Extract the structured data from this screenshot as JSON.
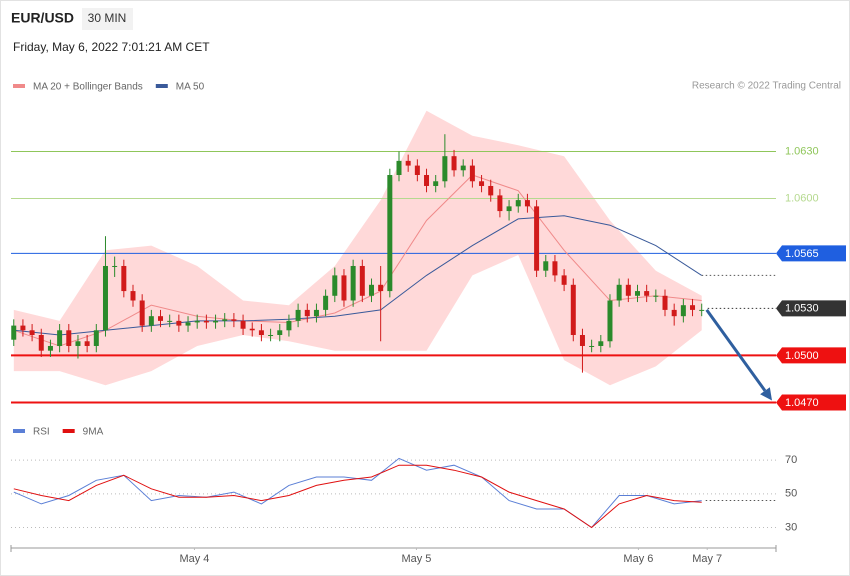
{
  "header": {
    "symbol": "EUR/USD",
    "timeframe": "30 MIN",
    "timestamp": "Friday, May 6, 2022 7:01:21 AM CET",
    "credit": "Research © 2022 Trading Central"
  },
  "chart_data": [
    {
      "type": "candlestick",
      "x": [
        0,
        1,
        2,
        3,
        4,
        5,
        6,
        7,
        8,
        9,
        10,
        11,
        12,
        13,
        14,
        15,
        16,
        17,
        18,
        19,
        20,
        21,
        22,
        23,
        24,
        25,
        26,
        27,
        28,
        29,
        30,
        31,
        32,
        33,
        34,
        35,
        36,
        37,
        38,
        39,
        40,
        41,
        42,
        43,
        44,
        45,
        46,
        47,
        48,
        49,
        50,
        51,
        52,
        53,
        54,
        55,
        56,
        57,
        58,
        59,
        60,
        61,
        62,
        63,
        64,
        65,
        66,
        67,
        68,
        69,
        70,
        71,
        72,
        73,
        74,
        75
      ],
      "open": [
        1.051,
        1.0519,
        1.0516,
        1.0513,
        1.0503,
        1.0506,
        1.0516,
        1.0506,
        1.0509,
        1.0506,
        1.0516,
        1.0557,
        1.0557,
        1.0541,
        1.0535,
        1.0519,
        1.0525,
        1.0522,
        1.0522,
        1.0519,
        1.0521,
        1.0522,
        1.0521,
        1.0522,
        1.0523,
        1.0522,
        1.0517,
        1.0516,
        1.0513,
        1.0513,
        1.0516,
        1.0522,
        1.0529,
        1.0525,
        1.0529,
        1.0538,
        1.0551,
        1.0535,
        1.0557,
        1.0538,
        1.0545,
        1.0541,
        1.0615,
        1.0624,
        1.0621,
        1.0615,
        1.0608,
        1.0611,
        1.0627,
        1.0618,
        1.0621,
        1.0611,
        1.0608,
        1.0602,
        1.0592,
        1.0595,
        1.0599,
        1.0595,
        1.0554,
        1.056,
        1.0551,
        1.0545,
        1.0513,
        1.0506,
        1.0506,
        1.0509,
        1.0535,
        1.0545,
        1.0538,
        1.0541,
        1.0538,
        1.0538,
        1.0529,
        1.0525,
        1.0532,
        1.0529
      ],
      "high": [
        1.0523,
        1.0523,
        1.052,
        1.0517,
        1.051,
        1.052,
        1.052,
        1.0513,
        1.0513,
        1.052,
        1.0576,
        1.0563,
        1.0561,
        1.0545,
        1.0539,
        1.0529,
        1.0529,
        1.0526,
        1.0526,
        1.0525,
        1.0526,
        1.0526,
        1.0526,
        1.0527,
        1.0527,
        1.0526,
        1.0521,
        1.052,
        1.0517,
        1.052,
        1.0526,
        1.0533,
        1.0533,
        1.0533,
        1.0542,
        1.0556,
        1.0555,
        1.0561,
        1.0561,
        1.0549,
        1.0557,
        1.0619,
        1.063,
        1.0628,
        1.0625,
        1.0619,
        1.0615,
        1.0641,
        1.0631,
        1.0625,
        1.0625,
        1.0615,
        1.0612,
        1.0606,
        1.0599,
        1.0603,
        1.0603,
        1.0599,
        1.0564,
        1.0564,
        1.0555,
        1.0549,
        1.0517,
        1.051,
        1.0513,
        1.0539,
        1.0549,
        1.0549,
        1.0545,
        1.0545,
        1.0542,
        1.0542,
        1.0533,
        1.0536,
        1.0536,
        1.0533
      ],
      "low": [
        1.0506,
        1.0512,
        1.0509,
        1.0499,
        1.0499,
        1.0502,
        1.0502,
        1.0498,
        1.0502,
        1.0502,
        1.0512,
        1.055,
        1.0537,
        1.0531,
        1.0515,
        1.0515,
        1.0518,
        1.0518,
        1.0515,
        1.0515,
        1.0517,
        1.0517,
        1.0517,
        1.0518,
        1.0518,
        1.0513,
        1.0512,
        1.0509,
        1.0509,
        1.0509,
        1.0512,
        1.0518,
        1.0521,
        1.0521,
        1.0525,
        1.0534,
        1.0531,
        1.0531,
        1.0534,
        1.0534,
        1.0509,
        1.0537,
        1.0611,
        1.0617,
        1.0611,
        1.0604,
        1.0604,
        1.0607,
        1.0614,
        1.0614,
        1.0607,
        1.0604,
        1.0598,
        1.0588,
        1.0586,
        1.0591,
        1.0591,
        1.055,
        1.055,
        1.0547,
        1.0541,
        1.0509,
        1.0489,
        1.0502,
        1.0502,
        1.0505,
        1.0531,
        1.0534,
        1.0534,
        1.0534,
        1.0534,
        1.0525,
        1.0519,
        1.0521,
        1.0525,
        1.0525
      ],
      "close": [
        1.0519,
        1.0516,
        1.0513,
        1.0503,
        1.0506,
        1.0516,
        1.0506,
        1.0509,
        1.0506,
        1.0516,
        1.0557,
        1.0557,
        1.0541,
        1.0535,
        1.0519,
        1.0525,
        1.0522,
        1.0522,
        1.0519,
        1.0521,
        1.0522,
        1.0521,
        1.0522,
        1.0523,
        1.0522,
        1.0517,
        1.0516,
        1.0513,
        1.0513,
        1.0516,
        1.0522,
        1.0529,
        1.0525,
        1.0529,
        1.0538,
        1.0551,
        1.0535,
        1.0557,
        1.0538,
        1.0545,
        1.0541,
        1.0615,
        1.0624,
        1.0621,
        1.0615,
        1.0608,
        1.0611,
        1.0627,
        1.0618,
        1.0621,
        1.0611,
        1.0608,
        1.0602,
        1.0592,
        1.0595,
        1.0599,
        1.0595,
        1.0554,
        1.056,
        1.0551,
        1.0545,
        1.0513,
        1.0506,
        1.0506,
        1.0509,
        1.0535,
        1.0545,
        1.0538,
        1.0541,
        1.0538,
        1.0538,
        1.0529,
        1.0525,
        1.0532,
        1.0529,
        1.0529
      ],
      "up_color": "#2b8a2b",
      "down_color": "#d11a1a",
      "xlim": [
        -0.3,
        83.1
      ],
      "xticks": [
        {
          "value": 19.7,
          "label": "May 4"
        },
        {
          "value": 43.9,
          "label": "May 5"
        },
        {
          "value": 68.1,
          "label": "May 6"
        },
        {
          "value": 75.6,
          "label": "May 7"
        }
      ],
      "ylim": [
        1.0462,
        1.0666
      ],
      "series": [
        {
          "name": "MA 20 + Bollinger Bands",
          "color": "#f08a8a",
          "band_color": "#ffd9d9",
          "x": [
            0,
            5,
            10,
            15,
            20,
            25,
            30,
            35,
            40,
            45,
            50,
            55,
            60,
            65,
            70,
            75
          ],
          "values": [
            1.0516,
            1.0506,
            1.0516,
            1.0532,
            1.0525,
            1.0522,
            1.0521,
            1.0527,
            1.0541,
            1.0586,
            1.0615,
            1.0605,
            1.0567,
            1.0535,
            1.0538,
            1.0535
          ],
          "upper": [
            1.0529,
            1.0522,
            1.0567,
            1.057,
            1.0557,
            1.0535,
            1.0532,
            1.0557,
            1.0599,
            1.0656,
            1.064,
            1.0634,
            1.0627,
            1.0586,
            1.0554,
            1.0538
          ],
          "lower": [
            1.049,
            1.049,
            1.0481,
            1.049,
            1.0506,
            1.0513,
            1.0509,
            1.0503,
            1.0503,
            1.0503,
            1.0551,
            1.0564,
            1.0497,
            1.0481,
            1.0493,
            1.0516
          ]
        },
        {
          "name": "MA 50",
          "color": "#3a5a9a",
          "x": [
            0,
            5,
            10,
            15,
            20,
            25,
            30,
            35,
            40,
            45,
            50,
            55,
            60,
            65,
            70,
            75
          ],
          "values": [
            1.0516,
            1.0513,
            1.0516,
            1.0519,
            1.0522,
            1.0522,
            1.0523,
            1.0525,
            1.0529,
            1.0551,
            1.057,
            1.0587,
            1.0589,
            1.0583,
            1.057,
            1.0551
          ]
        }
      ],
      "levels": [
        {
          "value": 1.063,
          "label": "1.0630",
          "color": "#8fc65a",
          "style": "solid",
          "badge": false
        },
        {
          "value": 1.06,
          "label": "1.0600",
          "color": "#b5d98f",
          "style": "solid",
          "badge": false
        },
        {
          "value": 1.0565,
          "label": "1.0565",
          "color": "#1f5fe0",
          "style": "solid",
          "badge": true
        },
        {
          "value": 1.053,
          "label": "1.0530",
          "color": "#333333",
          "style": "dotted",
          "badge": true
        },
        {
          "value": 1.05,
          "label": "1.0500",
          "color": "#ee1111",
          "style": "thick",
          "badge": true
        },
        {
          "value": 1.047,
          "label": "1.0470",
          "color": "#ee1111",
          "style": "thick",
          "badge": true,
          "arrow": "#2f5f9f"
        }
      ]
    },
    {
      "type": "line",
      "ylim": [
        22,
        76
      ],
      "yticks": [
        70,
        50,
        30
      ],
      "series": [
        {
          "name": "RSI",
          "color": "#5b7fd6",
          "x": [
            0,
            3,
            6,
            9,
            12,
            15,
            18,
            21,
            24,
            27,
            30,
            33,
            36,
            39,
            42,
            45,
            48,
            51,
            54,
            57,
            60,
            63,
            66,
            69,
            72,
            75
          ],
          "values": [
            51,
            44,
            49,
            58,
            61,
            46,
            49,
            48,
            51,
            44,
            55,
            60,
            60,
            58,
            71,
            64,
            67,
            60,
            46,
            41,
            41,
            30,
            49,
            49,
            44,
            46
          ]
        },
        {
          "name": "9MA",
          "color": "#e01010",
          "x": [
            0,
            3,
            6,
            9,
            12,
            15,
            18,
            21,
            24,
            27,
            30,
            33,
            36,
            39,
            42,
            45,
            48,
            51,
            54,
            57,
            60,
            63,
            66,
            69,
            72,
            75
          ],
          "values": [
            53,
            49,
            46,
            55,
            61,
            53,
            48,
            48,
            49,
            46,
            49,
            55,
            58,
            60,
            67,
            67,
            64,
            60,
            51,
            46,
            41,
            30,
            44,
            49,
            46,
            45
          ]
        }
      ]
    }
  ]
}
